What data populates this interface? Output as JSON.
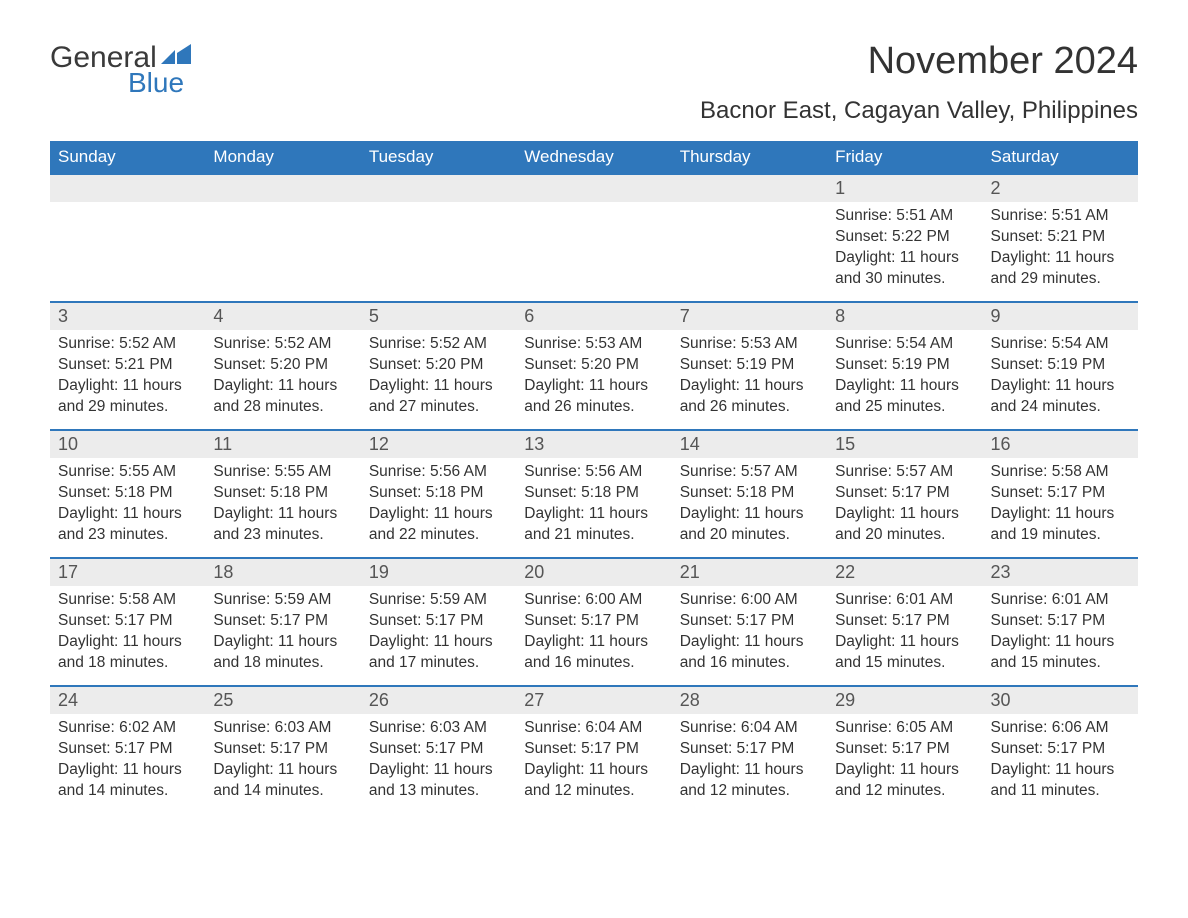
{
  "logo": {
    "word1": "General",
    "word2": "Blue",
    "brand_color": "#2f77bb",
    "text_color": "#3a3a3a"
  },
  "title": "November 2024",
  "location": "Bacnor East, Cagayan Valley, Philippines",
  "colors": {
    "header_bg": "#2f77bb",
    "header_text": "#ffffff",
    "daynum_bg": "#ececec",
    "row_border": "#2f77bb",
    "body_text": "#333333",
    "background": "#ffffff"
  },
  "day_headers": [
    "Sunday",
    "Monday",
    "Tuesday",
    "Wednesday",
    "Thursday",
    "Friday",
    "Saturday"
  ],
  "weeks": [
    [
      {
        "empty": true
      },
      {
        "empty": true
      },
      {
        "empty": true
      },
      {
        "empty": true
      },
      {
        "empty": true
      },
      {
        "day": "1",
        "sunrise": "Sunrise: 5:51 AM",
        "sunset": "Sunset: 5:22 PM",
        "daylight": "Daylight: 11 hours and 30 minutes."
      },
      {
        "day": "2",
        "sunrise": "Sunrise: 5:51 AM",
        "sunset": "Sunset: 5:21 PM",
        "daylight": "Daylight: 11 hours and 29 minutes."
      }
    ],
    [
      {
        "day": "3",
        "sunrise": "Sunrise: 5:52 AM",
        "sunset": "Sunset: 5:21 PM",
        "daylight": "Daylight: 11 hours and 29 minutes."
      },
      {
        "day": "4",
        "sunrise": "Sunrise: 5:52 AM",
        "sunset": "Sunset: 5:20 PM",
        "daylight": "Daylight: 11 hours and 28 minutes."
      },
      {
        "day": "5",
        "sunrise": "Sunrise: 5:52 AM",
        "sunset": "Sunset: 5:20 PM",
        "daylight": "Daylight: 11 hours and 27 minutes."
      },
      {
        "day": "6",
        "sunrise": "Sunrise: 5:53 AM",
        "sunset": "Sunset: 5:20 PM",
        "daylight": "Daylight: 11 hours and 26 minutes."
      },
      {
        "day": "7",
        "sunrise": "Sunrise: 5:53 AM",
        "sunset": "Sunset: 5:19 PM",
        "daylight": "Daylight: 11 hours and 26 minutes."
      },
      {
        "day": "8",
        "sunrise": "Sunrise: 5:54 AM",
        "sunset": "Sunset: 5:19 PM",
        "daylight": "Daylight: 11 hours and 25 minutes."
      },
      {
        "day": "9",
        "sunrise": "Sunrise: 5:54 AM",
        "sunset": "Sunset: 5:19 PM",
        "daylight": "Daylight: 11 hours and 24 minutes."
      }
    ],
    [
      {
        "day": "10",
        "sunrise": "Sunrise: 5:55 AM",
        "sunset": "Sunset: 5:18 PM",
        "daylight": "Daylight: 11 hours and 23 minutes."
      },
      {
        "day": "11",
        "sunrise": "Sunrise: 5:55 AM",
        "sunset": "Sunset: 5:18 PM",
        "daylight": "Daylight: 11 hours and 23 minutes."
      },
      {
        "day": "12",
        "sunrise": "Sunrise: 5:56 AM",
        "sunset": "Sunset: 5:18 PM",
        "daylight": "Daylight: 11 hours and 22 minutes."
      },
      {
        "day": "13",
        "sunrise": "Sunrise: 5:56 AM",
        "sunset": "Sunset: 5:18 PM",
        "daylight": "Daylight: 11 hours and 21 minutes."
      },
      {
        "day": "14",
        "sunrise": "Sunrise: 5:57 AM",
        "sunset": "Sunset: 5:18 PM",
        "daylight": "Daylight: 11 hours and 20 minutes."
      },
      {
        "day": "15",
        "sunrise": "Sunrise: 5:57 AM",
        "sunset": "Sunset: 5:17 PM",
        "daylight": "Daylight: 11 hours and 20 minutes."
      },
      {
        "day": "16",
        "sunrise": "Sunrise: 5:58 AM",
        "sunset": "Sunset: 5:17 PM",
        "daylight": "Daylight: 11 hours and 19 minutes."
      }
    ],
    [
      {
        "day": "17",
        "sunrise": "Sunrise: 5:58 AM",
        "sunset": "Sunset: 5:17 PM",
        "daylight": "Daylight: 11 hours and 18 minutes."
      },
      {
        "day": "18",
        "sunrise": "Sunrise: 5:59 AM",
        "sunset": "Sunset: 5:17 PM",
        "daylight": "Daylight: 11 hours and 18 minutes."
      },
      {
        "day": "19",
        "sunrise": "Sunrise: 5:59 AM",
        "sunset": "Sunset: 5:17 PM",
        "daylight": "Daylight: 11 hours and 17 minutes."
      },
      {
        "day": "20",
        "sunrise": "Sunrise: 6:00 AM",
        "sunset": "Sunset: 5:17 PM",
        "daylight": "Daylight: 11 hours and 16 minutes."
      },
      {
        "day": "21",
        "sunrise": "Sunrise: 6:00 AM",
        "sunset": "Sunset: 5:17 PM",
        "daylight": "Daylight: 11 hours and 16 minutes."
      },
      {
        "day": "22",
        "sunrise": "Sunrise: 6:01 AM",
        "sunset": "Sunset: 5:17 PM",
        "daylight": "Daylight: 11 hours and 15 minutes."
      },
      {
        "day": "23",
        "sunrise": "Sunrise: 6:01 AM",
        "sunset": "Sunset: 5:17 PM",
        "daylight": "Daylight: 11 hours and 15 minutes."
      }
    ],
    [
      {
        "day": "24",
        "sunrise": "Sunrise: 6:02 AM",
        "sunset": "Sunset: 5:17 PM",
        "daylight": "Daylight: 11 hours and 14 minutes."
      },
      {
        "day": "25",
        "sunrise": "Sunrise: 6:03 AM",
        "sunset": "Sunset: 5:17 PM",
        "daylight": "Daylight: 11 hours and 14 minutes."
      },
      {
        "day": "26",
        "sunrise": "Sunrise: 6:03 AM",
        "sunset": "Sunset: 5:17 PM",
        "daylight": "Daylight: 11 hours and 13 minutes."
      },
      {
        "day": "27",
        "sunrise": "Sunrise: 6:04 AM",
        "sunset": "Sunset: 5:17 PM",
        "daylight": "Daylight: 11 hours and 12 minutes."
      },
      {
        "day": "28",
        "sunrise": "Sunrise: 6:04 AM",
        "sunset": "Sunset: 5:17 PM",
        "daylight": "Daylight: 11 hours and 12 minutes."
      },
      {
        "day": "29",
        "sunrise": "Sunrise: 6:05 AM",
        "sunset": "Sunset: 5:17 PM",
        "daylight": "Daylight: 11 hours and 12 minutes."
      },
      {
        "day": "30",
        "sunrise": "Sunrise: 6:06 AM",
        "sunset": "Sunset: 5:17 PM",
        "daylight": "Daylight: 11 hours and 11 minutes."
      }
    ]
  ]
}
